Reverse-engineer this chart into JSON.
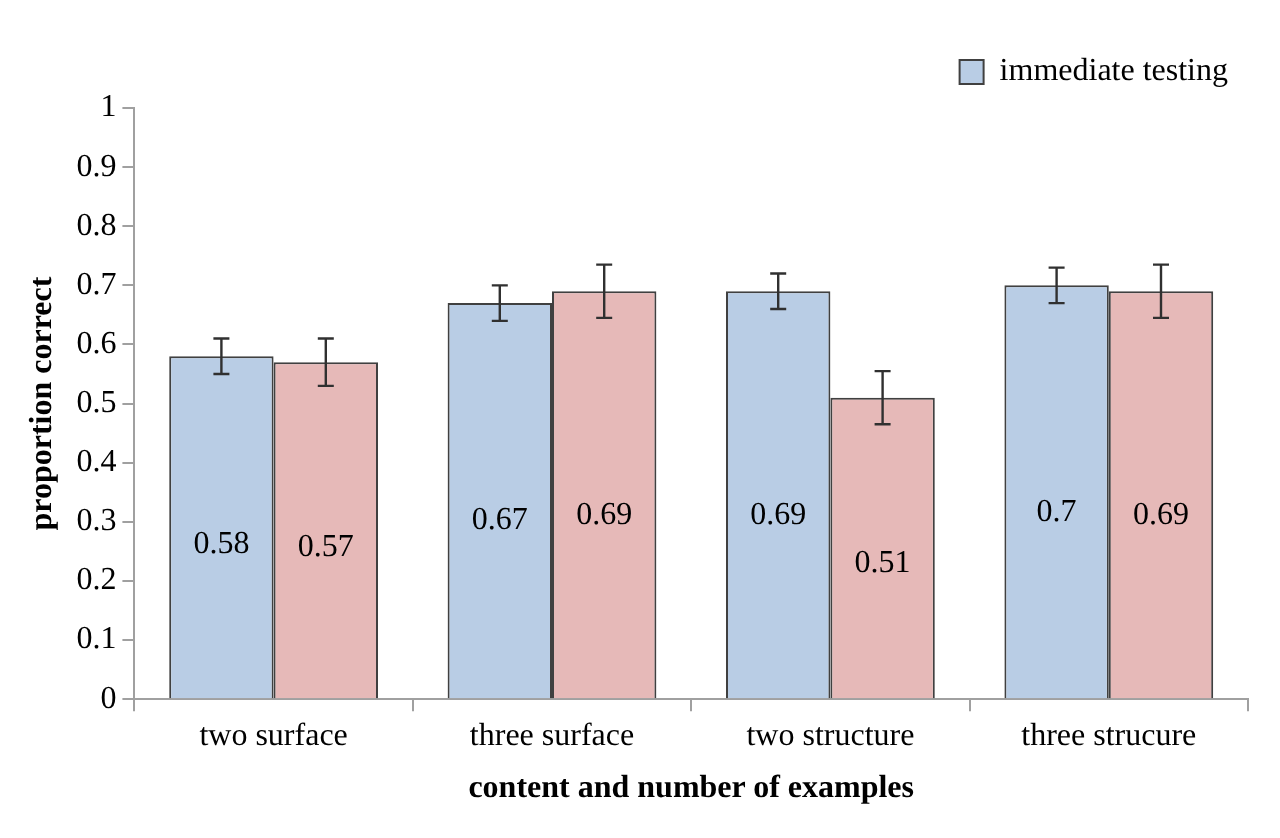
{
  "chart_data": {
    "type": "bar",
    "xlabel": "content and number of examples",
    "ylabel": "proportion correct",
    "categories": [
      "two surface",
      "three surface",
      "two structure",
      "three strucure"
    ],
    "series": [
      {
        "name": "immediate testing",
        "color": "#b9cde5",
        "values": [
          0.58,
          0.67,
          0.69,
          0.7
        ],
        "errors": [
          0.03,
          0.03,
          0.03,
          0.03
        ]
      },
      {
        "color": "#e6b9b8",
        "values": [
          0.57,
          0.69,
          0.51,
          0.69
        ],
        "errors": [
          0.04,
          0.045,
          0.045,
          0.045
        ]
      }
    ],
    "ylim": [
      0,
      1
    ],
    "yticks": [
      0,
      0.1,
      0.2,
      0.3,
      0.4,
      0.5,
      0.6,
      0.7,
      0.8,
      0.9,
      1
    ],
    "grid": false,
    "legend": "top right",
    "data_labels": true
  }
}
